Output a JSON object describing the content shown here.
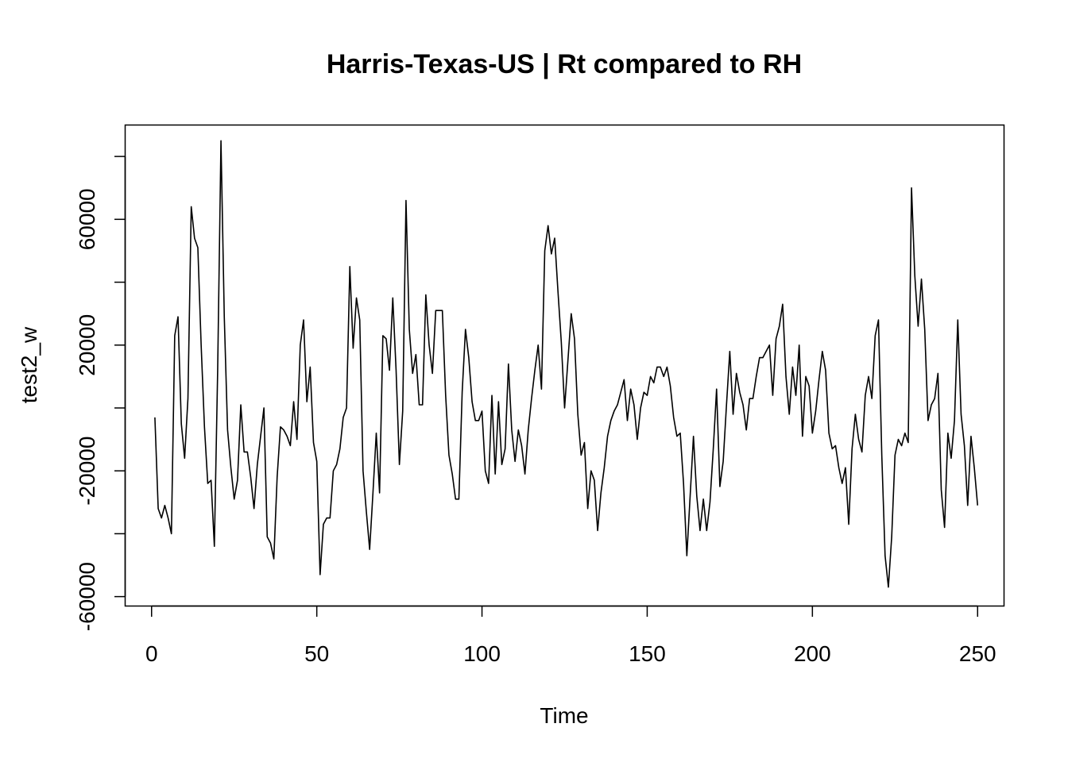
{
  "chart_data": {
    "type": "line",
    "title": "Harris-Texas-US | Rt compared to RH",
    "xlabel": "Time",
    "ylabel": "test2_w",
    "xlim": [
      -8,
      258
    ],
    "ylim": [
      -63000,
      90000
    ],
    "x_ticks": [
      0,
      50,
      100,
      150,
      200,
      250
    ],
    "y_ticks": [
      -60000,
      -20000,
      20000,
      60000
    ],
    "x_tick_labels": [
      "0",
      "50",
      "100",
      "150",
      "200",
      "250"
    ],
    "y_tick_labels": [
      "-60000",
      "-20000",
      "20000",
      "60000"
    ],
    "grid": false,
    "line_color": "#000000",
    "series": [
      {
        "x_start": 1,
        "values": [
          -3000,
          -32000,
          -35000,
          -31000,
          -35000,
          -40000,
          23000,
          29000,
          -5000,
          -16000,
          3000,
          64000,
          54000,
          51000,
          20000,
          -6000,
          -24000,
          -23000,
          -44000,
          12000,
          85000,
          29000,
          -7000,
          -19000,
          -29000,
          -23000,
          1000,
          -14000,
          -14000,
          -22000,
          -32000,
          -18000,
          -9000,
          0,
          -41000,
          -43000,
          -48000,
          -22000,
          -6000,
          -7000,
          -9000,
          -12000,
          2000,
          -10000,
          20000,
          28000,
          2000,
          13000,
          -11000,
          -17000,
          -53000,
          -37000,
          -35000,
          -35000,
          -20000,
          -18000,
          -13000,
          -3000,
          0,
          45000,
          19000,
          35000,
          28000,
          -20000,
          -33000,
          -45000,
          -27000,
          -8000,
          -27000,
          23000,
          22000,
          12000,
          35000,
          12000,
          -18000,
          -1000,
          66000,
          25000,
          11000,
          17000,
          1000,
          1000,
          36000,
          20000,
          11000,
          31000,
          31000,
          31000,
          4000,
          -15000,
          -21000,
          -29000,
          -29000,
          5000,
          25000,
          16000,
          2000,
          -4000,
          -4000,
          -1000,
          -20000,
          -24000,
          4000,
          -21000,
          2000,
          -18000,
          -13000,
          14000,
          -7000,
          -17000,
          -7000,
          -12000,
          -21000,
          -7000,
          3000,
          12000,
          20000,
          6000,
          50000,
          58000,
          49000,
          54000,
          37000,
          21000,
          0,
          15000,
          30000,
          22000,
          -2000,
          -15000,
          -11000,
          -32000,
          -20000,
          -23000,
          -39000,
          -27000,
          -19000,
          -9000,
          -4000,
          -1000,
          1000,
          5000,
          9000,
          -4000,
          6000,
          1000,
          -10000,
          0,
          5000,
          4000,
          10000,
          8000,
          13000,
          13000,
          10000,
          13000,
          7000,
          -3000,
          -9000,
          -8000,
          -24000,
          -47000,
          -28000,
          -9000,
          -28000,
          -39000,
          -29000,
          -39000,
          -30000,
          -13000,
          6000,
          -25000,
          -17000,
          1000,
          18000,
          -2000,
          11000,
          5000,
          1000,
          -7000,
          3000,
          3000,
          10000,
          16000,
          16000,
          18000,
          20000,
          4000,
          22000,
          26000,
          33000,
          10000,
          -2000,
          13000,
          4000,
          20000,
          -9000,
          10000,
          7000,
          -8000,
          -1000,
          9000,
          18000,
          12000,
          -8000,
          -13000,
          -12000,
          -19000,
          -24000,
          -19000,
          -37000,
          -13000,
          -2000,
          -10000,
          -14000,
          4000,
          10000,
          3000,
          23000,
          28000,
          -15000,
          -47000,
          -57000,
          -41000,
          -15000,
          -10000,
          -12000,
          -8000,
          -11000,
          70000,
          42000,
          26000,
          41000,
          25000,
          -4000,
          1000,
          3000,
          11000,
          -26000,
          -38000,
          -8000,
          -16000,
          -4000,
          28000,
          -2000,
          -12000,
          -31000,
          -9000,
          -19000,
          -31000
        ]
      }
    ]
  }
}
